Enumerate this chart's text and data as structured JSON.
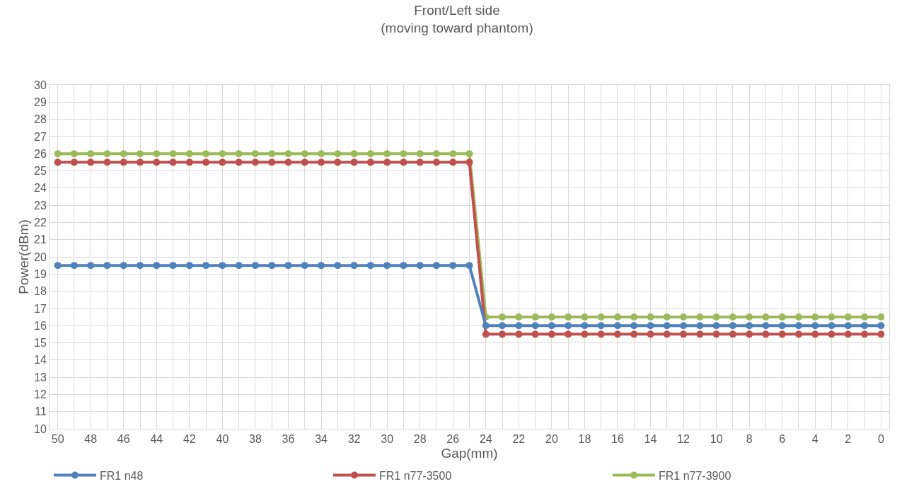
{
  "chart_data": {
    "type": "line",
    "title": "Front/Left side\n(moving toward phantom)",
    "xlabel": "Gap(mm)",
    "ylabel": "Power(dBm)",
    "x": [
      50,
      49,
      48,
      47,
      46,
      45,
      44,
      43,
      42,
      41,
      40,
      39,
      38,
      37,
      36,
      35,
      34,
      33,
      32,
      31,
      30,
      29,
      28,
      27,
      26,
      25,
      24,
      23,
      22,
      21,
      20,
      19,
      18,
      17,
      16,
      15,
      14,
      13,
      12,
      11,
      10,
      9,
      8,
      7,
      6,
      5,
      4,
      3,
      2,
      1,
      0
    ],
    "series": [
      {
        "name": "FR1 n48",
        "color": "#4f81bd",
        "values": [
          19.5,
          19.5,
          19.5,
          19.5,
          19.5,
          19.5,
          19.5,
          19.5,
          19.5,
          19.5,
          19.5,
          19.5,
          19.5,
          19.5,
          19.5,
          19.5,
          19.5,
          19.5,
          19.5,
          19.5,
          19.5,
          19.5,
          19.5,
          19.5,
          19.5,
          19.5,
          16,
          16,
          16,
          16,
          16,
          16,
          16,
          16,
          16,
          16,
          16,
          16,
          16,
          16,
          16,
          16,
          16,
          16,
          16,
          16,
          16,
          16,
          16,
          16,
          16
        ]
      },
      {
        "name": "FR1 n77-3500",
        "color": "#c0504d",
        "values": [
          25.5,
          25.5,
          25.5,
          25.5,
          25.5,
          25.5,
          25.5,
          25.5,
          25.5,
          25.5,
          25.5,
          25.5,
          25.5,
          25.5,
          25.5,
          25.5,
          25.5,
          25.5,
          25.5,
          25.5,
          25.5,
          25.5,
          25.5,
          25.5,
          25.5,
          25.5,
          15.5,
          15.5,
          15.5,
          15.5,
          15.5,
          15.5,
          15.5,
          15.5,
          15.5,
          15.5,
          15.5,
          15.5,
          15.5,
          15.5,
          15.5,
          15.5,
          15.5,
          15.5,
          15.5,
          15.5,
          15.5,
          15.5,
          15.5,
          15.5,
          15.5
        ]
      },
      {
        "name": "FR1 n77-3900",
        "color": "#9bbb59",
        "values": [
          26,
          26,
          26,
          26,
          26,
          26,
          26,
          26,
          26,
          26,
          26,
          26,
          26,
          26,
          26,
          26,
          26,
          26,
          26,
          26,
          26,
          26,
          26,
          26,
          26,
          26,
          16.5,
          16.5,
          16.5,
          16.5,
          16.5,
          16.5,
          16.5,
          16.5,
          16.5,
          16.5,
          16.5,
          16.5,
          16.5,
          16.5,
          16.5,
          16.5,
          16.5,
          16.5,
          16.5,
          16.5,
          16.5,
          16.5,
          16.5,
          16.5,
          16.5
        ]
      }
    ],
    "xlim": [
      50.5,
      -0.5
    ],
    "xticks": [
      50,
      {
        "value": 49,
        "label": null
      },
      48,
      {
        "value": 47,
        "label": null
      },
      46,
      {
        "value": 45,
        "label": null
      },
      44,
      {
        "value": 43,
        "label": null
      },
      42,
      {
        "value": 41,
        "label": null
      },
      40,
      {
        "value": 39,
        "label": null
      },
      38,
      {
        "value": 37,
        "label": null
      },
      36,
      {
        "value": 35,
        "label": null
      },
      34,
      {
        "value": 33,
        "label": null
      },
      32,
      {
        "value": 31,
        "label": null
      },
      30,
      {
        "value": 29,
        "label": null
      },
      28,
      {
        "value": 27,
        "label": null
      },
      26,
      {
        "value": 25,
        "label": null
      },
      24,
      {
        "value": 23,
        "label": null
      },
      22,
      {
        "value": 21,
        "label": null
      },
      20,
      {
        "value": 19,
        "label": null
      },
      18,
      {
        "value": 17,
        "label": null
      },
      16,
      {
        "value": 15,
        "label": null
      },
      14,
      {
        "value": 13,
        "label": null
      },
      12,
      {
        "value": 11,
        "label": null
      },
      10,
      {
        "value": 9,
        "label": null
      },
      8,
      {
        "value": 7,
        "label": null
      },
      6,
      {
        "value": 5,
        "label": null
      },
      4,
      {
        "value": 3,
        "label": null
      },
      2,
      {
        "value": 1,
        "label": null
      },
      0
    ],
    "ylim": [
      10,
      30
    ],
    "yticks": [
      10,
      11,
      12,
      13,
      14,
      15,
      16,
      17,
      18,
      19,
      20,
      21,
      22,
      23,
      24,
      25,
      26,
      27,
      28,
      29,
      30
    ],
    "grid": true,
    "legend": "bottom",
    "marker": "circle",
    "line_style": "solid"
  }
}
